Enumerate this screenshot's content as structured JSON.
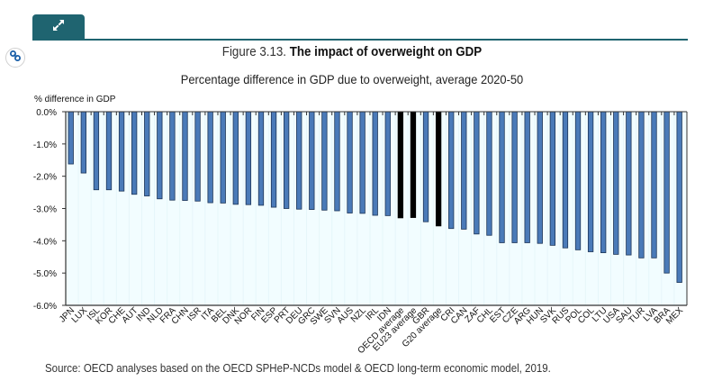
{
  "header": {
    "expand_icon": "expand-arrows-icon",
    "link_icon": "link-chain-icon",
    "figure_number": "Figure 3.13.",
    "figure_title": "The impact of overweight on GDP",
    "subtitle": "Percentage difference in GDP due to overweight, average 2020-50"
  },
  "colors": {
    "accent": "#1f6470",
    "bar_country": "#4a7ab8",
    "bar_average": "#000000",
    "plot_background": "#f2fdff"
  },
  "chart_data": {
    "type": "bar",
    "title": "The impact of overweight on GDP",
    "subtitle": "Percentage difference in GDP due to overweight, average 2020-50",
    "xlabel": "",
    "ylabel": "% difference in GDP",
    "ylim": [
      -6.0,
      0.0
    ],
    "yticks": [
      0.0,
      -1.0,
      -2.0,
      -3.0,
      -4.0,
      -5.0,
      -6.0
    ],
    "ytick_labels": [
      "0.0%",
      "-1.0%",
      "-2.0%",
      "-3.0%",
      "-4.0%",
      "-5.0%",
      "-6.0%"
    ],
    "grid": false,
    "legend": "none",
    "categories": [
      "JPN",
      "LUX",
      "ISL",
      "KOR",
      "CHE",
      "AUT",
      "IND",
      "NLD",
      "FRA",
      "CHN",
      "ISR",
      "ITA",
      "BEL",
      "DNK",
      "NOR",
      "FIN",
      "ESP",
      "PRT",
      "DEU",
      "GRC",
      "SWE",
      "SVN",
      "AUS",
      "NZL",
      "IRL",
      "IDN",
      "OECD average",
      "EU23 average",
      "GBR",
      "G20 average",
      "CRI",
      "CAN",
      "ZAF",
      "CHL",
      "EST",
      "CZE",
      "ARG",
      "HUN",
      "SVK",
      "RUS",
      "POL",
      "COL",
      "LTU",
      "USA",
      "SAU",
      "TUR",
      "LVA",
      "BRA",
      "MEX"
    ],
    "values": [
      -1.62,
      -1.9,
      -2.42,
      -2.42,
      -2.46,
      -2.56,
      -2.61,
      -2.7,
      -2.74,
      -2.75,
      -2.77,
      -2.82,
      -2.83,
      -2.87,
      -2.88,
      -2.9,
      -2.96,
      -3.0,
      -3.02,
      -3.03,
      -3.05,
      -3.07,
      -3.14,
      -3.15,
      -3.21,
      -3.22,
      -3.29,
      -3.28,
      -3.41,
      -3.54,
      -3.62,
      -3.64,
      -3.79,
      -3.83,
      -4.06,
      -4.06,
      -4.06,
      -4.08,
      -4.14,
      -4.22,
      -4.28,
      -4.34,
      -4.37,
      -4.42,
      -4.44,
      -4.53,
      -4.53,
      -5.0,
      -5.29
    ],
    "highlight": [
      "OECD average",
      "EU23 average",
      "G20 average"
    ]
  },
  "footer": {
    "source": "Source: OECD analyses based on the OECD SPHeP-NCDs model & OECD long-term economic model, 2019."
  }
}
